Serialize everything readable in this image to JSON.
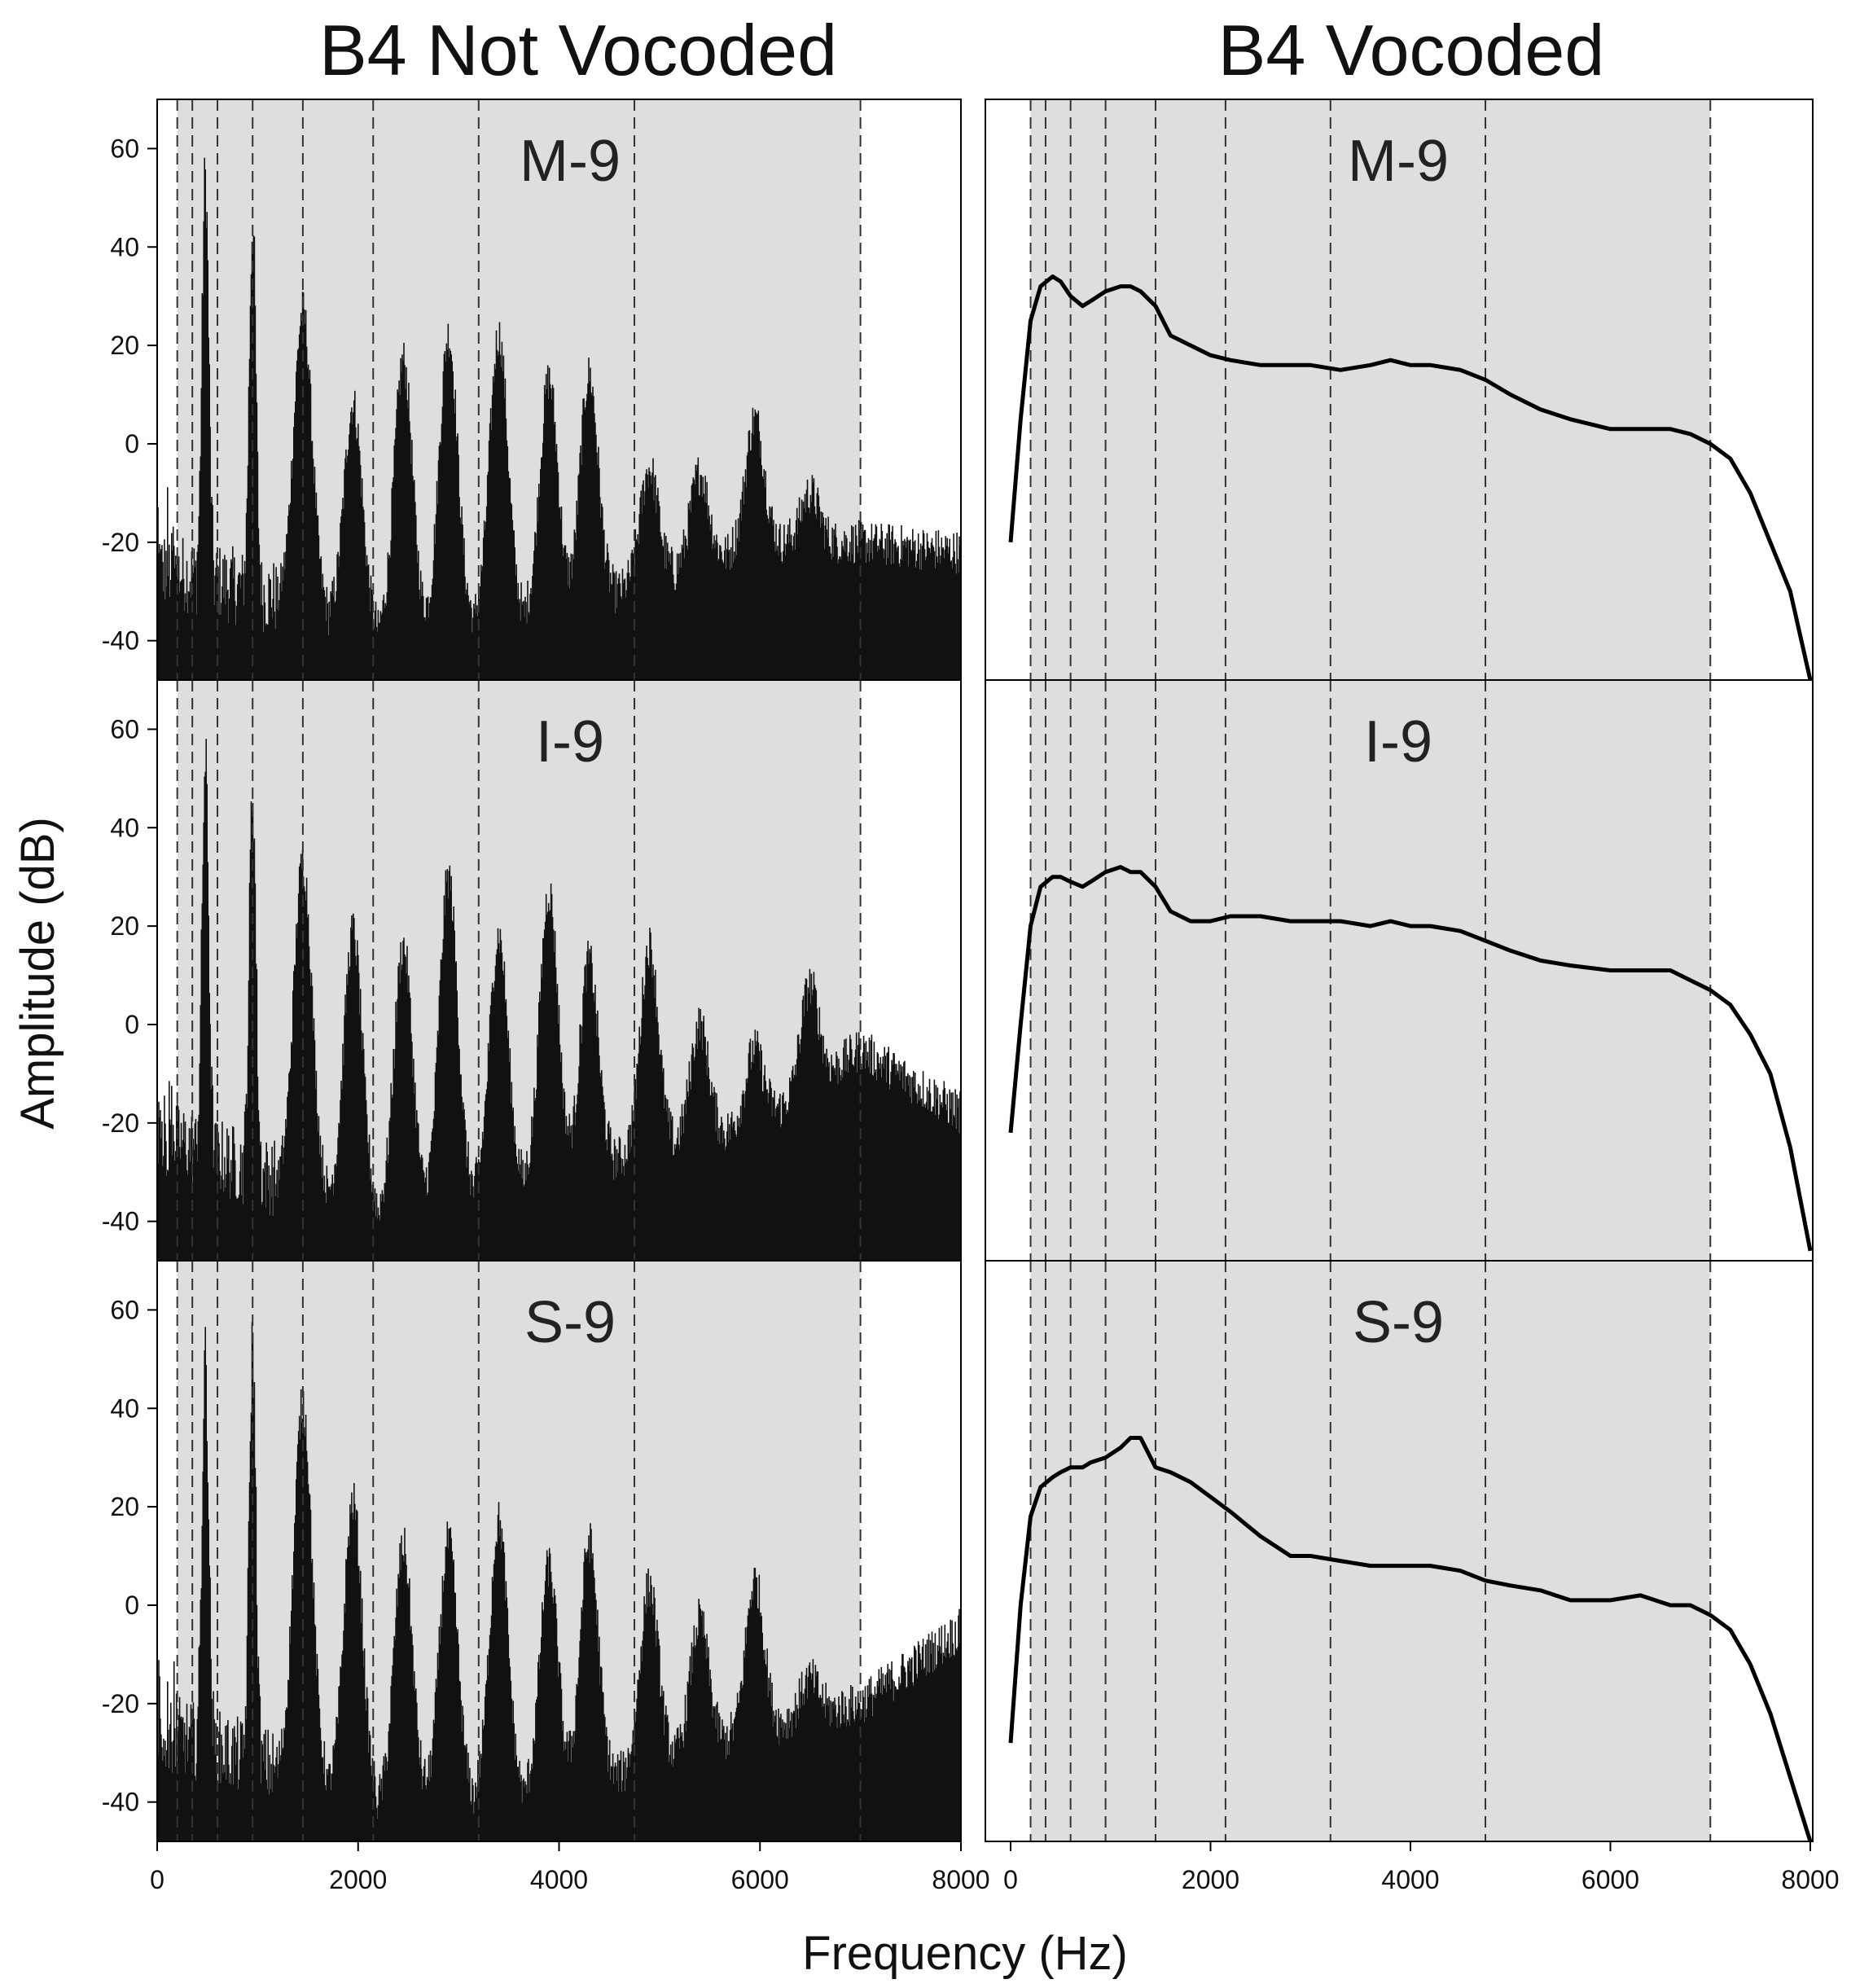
{
  "chart_data": {
    "type": "area",
    "ylabel": "Amplitude (dB)",
    "xlabel": "Frequency (Hz)",
    "ylim": [
      -48,
      70
    ],
    "yticks": [
      60,
      40,
      20,
      0,
      -20,
      -40
    ],
    "xticks": [
      0,
      2000,
      4000,
      6000,
      8000
    ],
    "columns": [
      {
        "title": "B4 Not Vocoded",
        "xlim": [
          0,
          8000
        ],
        "render": "spectrum"
      },
      {
        "title": "B4 Vocoded",
        "xlim": [
          0,
          8000
        ],
        "render": "curve"
      }
    ],
    "rows": [
      {
        "label": "M-9",
        "band_edges": [
          200,
          350,
          600,
          950,
          1450,
          2150,
          3200,
          4750,
          7000
        ],
        "shaded_band": [
          200,
          7000
        ],
        "not_vocoded": {
          "peaks": [
            [
              480,
              54
            ],
            [
              950,
              45
            ],
            [
              1450,
              27
            ],
            [
              1950,
              8
            ],
            [
              2450,
              17
            ],
            [
              2900,
              22
            ],
            [
              3400,
              22
            ],
            [
              3900,
              13
            ],
            [
              4300,
              14
            ],
            [
              4900,
              -5
            ],
            [
              5400,
              -6
            ],
            [
              5950,
              5
            ],
            [
              6500,
              -10
            ]
          ],
          "floor": [
            [
              0,
              -25
            ],
            [
              1000,
              -30
            ],
            [
              2200,
              -38
            ],
            [
              4000,
              -34
            ],
            [
              6000,
              -20
            ],
            [
              7000,
              -20
            ],
            [
              8000,
              -22
            ]
          ]
        },
        "vocoded": {
          "x": [
            0,
            100,
            200,
            300,
            420,
            500,
            600,
            720,
            800,
            950,
            1100,
            1200,
            1300,
            1450,
            1600,
            1800,
            2000,
            2200,
            2500,
            2800,
            3000,
            3300,
            3600,
            3800,
            4000,
            4200,
            4500,
            4750,
            5000,
            5300,
            5600,
            6000,
            6300,
            6600,
            6800,
            7000,
            7200,
            7400,
            7600,
            7800,
            8000
          ],
          "y": [
            -20,
            5,
            25,
            32,
            34,
            33,
            30,
            28,
            29,
            31,
            32,
            32,
            31,
            28,
            22,
            20,
            18,
            17,
            16,
            16,
            16,
            15,
            16,
            17,
            16,
            16,
            15,
            13,
            10,
            7,
            5,
            3,
            3,
            3,
            2,
            0,
            -3,
            -10,
            -20,
            -30,
            -48
          ]
        }
      },
      {
        "label": "I-9",
        "band_edges": [
          200,
          350,
          600,
          950,
          1450,
          2150,
          3200,
          4750,
          7000
        ],
        "shaded_band": [
          200,
          7000
        ],
        "not_vocoded": {
          "peaks": [
            [
              480,
              53
            ],
            [
              950,
              48
            ],
            [
              1450,
              33
            ],
            [
              1950,
              19
            ],
            [
              2450,
              16
            ],
            [
              2900,
              30
            ],
            [
              3400,
              18
            ],
            [
              3900,
              27
            ],
            [
              4300,
              13
            ],
            [
              4900,
              16
            ],
            [
              5400,
              0
            ],
            [
              5950,
              -5
            ],
            [
              6500,
              8
            ]
          ],
          "floor": [
            [
              0,
              -22
            ],
            [
              1000,
              -30
            ],
            [
              2200,
              -38
            ],
            [
              4000,
              -30
            ],
            [
              6000,
              -20
            ],
            [
              7000,
              -5
            ],
            [
              8000,
              -18
            ]
          ]
        },
        "vocoded": {
          "x": [
            0,
            100,
            200,
            300,
            420,
            500,
            600,
            720,
            800,
            950,
            1100,
            1200,
            1300,
            1450,
            1600,
            1800,
            2000,
            2200,
            2500,
            2800,
            3000,
            3300,
            3600,
            3800,
            4000,
            4200,
            4500,
            4750,
            5000,
            5300,
            5600,
            6000,
            6300,
            6600,
            6800,
            7000,
            7200,
            7400,
            7600,
            7800,
            8000
          ],
          "y": [
            -22,
            0,
            20,
            28,
            30,
            30,
            29,
            28,
            29,
            31,
            32,
            31,
            31,
            28,
            23,
            21,
            21,
            22,
            22,
            21,
            21,
            21,
            20,
            21,
            20,
            20,
            19,
            17,
            15,
            13,
            12,
            11,
            11,
            11,
            9,
            7,
            4,
            -2,
            -10,
            -25,
            -46
          ]
        }
      },
      {
        "label": "S-9",
        "band_edges": [
          200,
          350,
          600,
          950,
          1450,
          2150,
          3200,
          4750,
          7000
        ],
        "shaded_band": [
          200,
          7000
        ],
        "not_vocoded": {
          "peaks": [
            [
              480,
              50
            ],
            [
              950,
              53
            ],
            [
              1450,
              41
            ],
            [
              1950,
              21
            ],
            [
              2450,
              12
            ],
            [
              2900,
              13
            ],
            [
              3400,
              17
            ],
            [
              3900,
              8
            ],
            [
              4300,
              13
            ],
            [
              4900,
              4
            ],
            [
              5400,
              -3
            ],
            [
              5950,
              5
            ],
            [
              6500,
              -15
            ]
          ],
          "floor": [
            [
              0,
              -25
            ],
            [
              1000,
              -32
            ],
            [
              2200,
              -40
            ],
            [
              4000,
              -38
            ],
            [
              6000,
              -25
            ],
            [
              7000,
              -20
            ],
            [
              8000,
              -5
            ]
          ]
        },
        "vocoded": {
          "x": [
            0,
            100,
            200,
            300,
            420,
            500,
            600,
            720,
            800,
            950,
            1100,
            1200,
            1300,
            1450,
            1600,
            1800,
            2000,
            2200,
            2500,
            2800,
            3000,
            3300,
            3600,
            3800,
            4000,
            4200,
            4500,
            4750,
            5000,
            5300,
            5600,
            6000,
            6300,
            6600,
            6800,
            7000,
            7200,
            7400,
            7600,
            7800,
            8000
          ],
          "y": [
            -28,
            0,
            18,
            24,
            26,
            27,
            28,
            28,
            29,
            30,
            32,
            34,
            34,
            28,
            27,
            25,
            22,
            19,
            14,
            10,
            10,
            9,
            8,
            8,
            8,
            8,
            7,
            5,
            4,
            3,
            1,
            1,
            2,
            0,
            0,
            -2,
            -5,
            -12,
            -22,
            -35,
            -48
          ]
        }
      }
    ]
  }
}
